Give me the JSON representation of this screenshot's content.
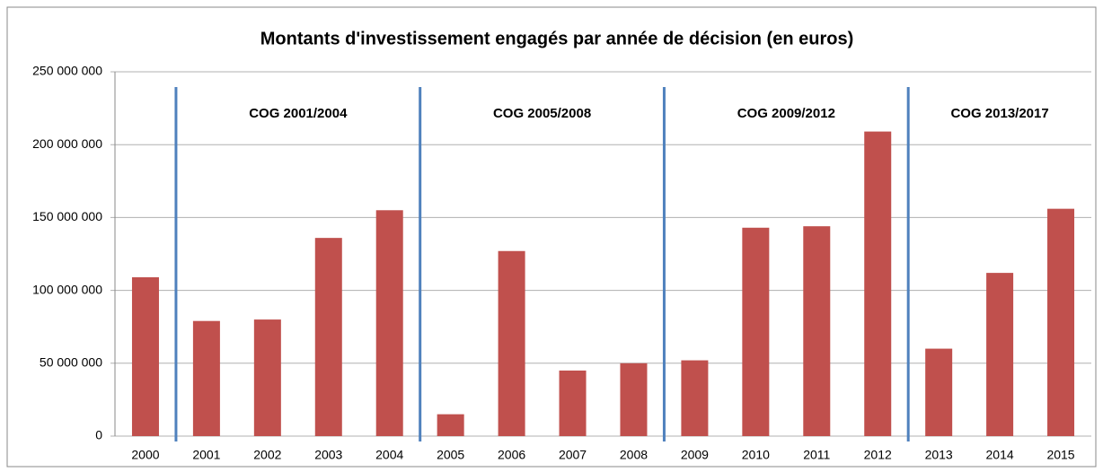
{
  "chart_data": {
    "type": "bar",
    "title": "Montants d'investissement engagés par année de décision (en euros)",
    "categories": [
      "2000",
      "2001",
      "2002",
      "2003",
      "2004",
      "2005",
      "2006",
      "2007",
      "2008",
      "2009",
      "2010",
      "2011",
      "2012",
      "2013",
      "2014",
      "2015"
    ],
    "values": [
      109000000,
      79000000,
      80000000,
      136000000,
      155000000,
      15000000,
      127000000,
      45000000,
      50000000,
      52000000,
      143000000,
      144000000,
      209000000,
      60000000,
      112000000,
      156000000
    ],
    "color": "#c0504d",
    "ylim": [
      0,
      250000000
    ],
    "yticks": [
      0,
      {
        "value": 50000000,
        "label": "50 000 000"
      },
      {
        "value": 100000000,
        "label": "100 000 000"
      },
      {
        "value": 150000000,
        "label": "150 000 000"
      },
      {
        "value": 200000000,
        "label": "200 000 000"
      },
      {
        "value": 250000000,
        "label": "250 000 000"
      }
    ],
    "grid": true,
    "annotations": [
      {
        "text": "COG 2001/2004"
      },
      {
        "text": "COG 2005/2008"
      },
      {
        "text": "COG 2009/2012"
      },
      {
        "text": "COG 2013/2017"
      }
    ]
  }
}
